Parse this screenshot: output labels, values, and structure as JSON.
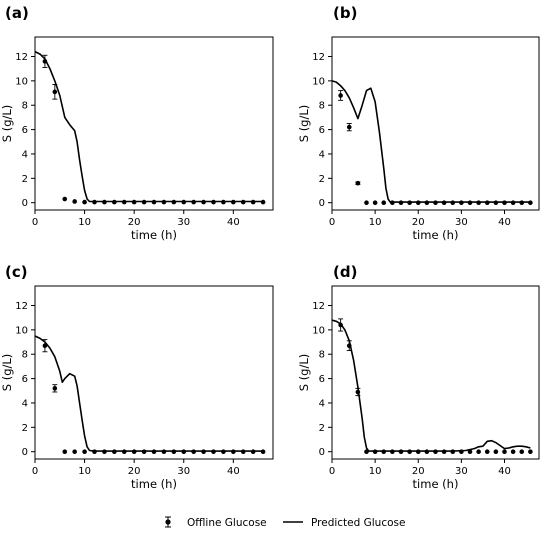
{
  "legend": {
    "offline_label": "Offline Glucose",
    "predicted_label": "Predicted Glucose"
  },
  "chart_data": [
    {
      "type": "line",
      "panel_label": "(a)",
      "xlabel": "time (h)",
      "ylabel": "S (g/L)",
      "xlim": [
        0,
        48
      ],
      "ylim": [
        -0.6,
        13.6
      ],
      "xticks": [
        0,
        10,
        20,
        30,
        40
      ],
      "yticks": [
        0,
        2,
        4,
        6,
        8,
        10,
        12
      ],
      "series": [
        {
          "kind": "scatter_errorbar",
          "x": [
            2,
            4,
            6,
            8,
            10,
            12,
            14,
            16,
            18,
            20,
            22,
            24,
            26,
            28,
            30,
            32,
            34,
            36,
            38,
            40,
            42,
            44,
            46
          ],
          "y": [
            11.6,
            9.1,
            0.3,
            0.1,
            0.05,
            0.05,
            0.05,
            0.05,
            0.05,
            0.05,
            0.05,
            0.05,
            0.05,
            0.05,
            0.05,
            0.05,
            0.05,
            0.05,
            0.05,
            0.05,
            0.05,
            0.05,
            0.05
          ],
          "err": [
            0.5,
            0.6,
            0,
            0,
            0,
            0,
            0,
            0,
            0,
            0,
            0,
            0,
            0,
            0,
            0,
            0,
            0,
            0,
            0,
            0,
            0,
            0,
            0
          ]
        },
        {
          "kind": "line",
          "x": [
            0,
            1,
            2,
            3,
            4,
            5,
            6,
            7,
            8,
            8.5,
            9,
            9.5,
            10,
            10.5,
            11,
            12,
            14,
            20,
            30,
            40,
            46
          ],
          "y": [
            12.4,
            12.2,
            11.8,
            11.0,
            10.0,
            8.8,
            7.0,
            6.4,
            5.9,
            5.0,
            3.5,
            2.2,
            1.0,
            0.3,
            0.1,
            0.1,
            0.1,
            0.1,
            0.1,
            0.1,
            0.1
          ]
        }
      ]
    },
    {
      "type": "line",
      "panel_label": "(b)",
      "xlabel": "time (h)",
      "ylabel": "S (g/L)",
      "xlim": [
        0,
        48
      ],
      "ylim": [
        -0.6,
        13.6
      ],
      "xticks": [
        0,
        10,
        20,
        30,
        40
      ],
      "yticks": [
        0,
        2,
        4,
        6,
        8,
        10,
        12
      ],
      "series": [
        {
          "kind": "scatter_errorbar",
          "x": [
            2,
            4,
            6,
            8,
            10,
            12,
            14,
            16,
            18,
            20,
            22,
            24,
            26,
            28,
            30,
            32,
            34,
            36,
            38,
            40,
            42,
            44,
            46
          ],
          "y": [
            8.8,
            6.2,
            1.6,
            0,
            0,
            0,
            0,
            0,
            0,
            0,
            0,
            0,
            0,
            0,
            0,
            0,
            0,
            0,
            0,
            0,
            0,
            0,
            0
          ],
          "err": [
            0.4,
            0.3,
            0.1,
            0,
            0,
            0,
            0,
            0,
            0,
            0,
            0,
            0,
            0,
            0,
            0,
            0,
            0,
            0,
            0,
            0,
            0,
            0,
            0
          ]
        },
        {
          "kind": "line",
          "x": [
            0,
            1,
            2,
            3,
            4,
            5,
            6,
            7,
            8,
            9,
            10,
            11,
            12,
            12.5,
            13,
            13.5,
            14,
            20,
            30,
            40,
            46
          ],
          "y": [
            10.0,
            9.9,
            9.6,
            9.2,
            8.6,
            7.8,
            6.9,
            8.0,
            9.2,
            9.4,
            8.3,
            5.8,
            2.8,
            1.2,
            0.3,
            0.05,
            0.05,
            0.05,
            0.05,
            0.05,
            0.05
          ]
        }
      ]
    },
    {
      "type": "line",
      "panel_label": "(c)",
      "xlabel": "time (h)",
      "ylabel": "S (g/L)",
      "xlim": [
        0,
        48
      ],
      "ylim": [
        -0.6,
        13.6
      ],
      "xticks": [
        0,
        10,
        20,
        30,
        40
      ],
      "yticks": [
        0,
        2,
        4,
        6,
        8,
        10,
        12
      ],
      "series": [
        {
          "kind": "scatter_errorbar",
          "x": [
            2,
            4,
            6,
            8,
            10,
            12,
            14,
            16,
            18,
            20,
            22,
            24,
            26,
            28,
            30,
            32,
            34,
            36,
            38,
            40,
            42,
            44,
            46
          ],
          "y": [
            8.7,
            5.2,
            0,
            0,
            0,
            0,
            0,
            0,
            0,
            0,
            0,
            0,
            0,
            0,
            0,
            0,
            0,
            0,
            0,
            0,
            0,
            0,
            0
          ],
          "err": [
            0.5,
            0.3,
            0,
            0,
            0,
            0,
            0,
            0,
            0,
            0,
            0,
            0,
            0,
            0,
            0,
            0,
            0,
            0,
            0,
            0,
            0,
            0,
            0
          ]
        },
        {
          "kind": "line",
          "x": [
            0,
            1,
            2,
            3,
            4,
            5,
            5.5,
            6,
            7,
            8,
            8.5,
            9,
            9.5,
            10,
            10.5,
            11,
            12,
            20,
            30,
            40,
            46
          ],
          "y": [
            9.5,
            9.3,
            9.0,
            8.5,
            7.8,
            6.6,
            5.7,
            6.0,
            6.4,
            6.2,
            5.4,
            4.0,
            2.6,
            1.3,
            0.4,
            0.1,
            0.05,
            0.05,
            0.05,
            0.05,
            0.05
          ]
        }
      ]
    },
    {
      "type": "line",
      "panel_label": "(d)",
      "xlabel": "time (h)",
      "ylabel": "S (g/L)",
      "xlim": [
        0,
        48
      ],
      "ylim": [
        -0.6,
        13.6
      ],
      "xticks": [
        0,
        10,
        20,
        30,
        40
      ],
      "yticks": [
        0,
        2,
        4,
        6,
        8,
        10,
        12
      ],
      "series": [
        {
          "kind": "scatter_errorbar",
          "x": [
            2,
            4,
            6,
            8,
            10,
            12,
            14,
            16,
            18,
            20,
            22,
            24,
            26,
            28,
            30,
            32,
            34,
            36,
            38,
            40,
            42,
            44,
            46
          ],
          "y": [
            10.4,
            8.7,
            4.9,
            0,
            0,
            0,
            0,
            0,
            0,
            0,
            0,
            0,
            0,
            0,
            0,
            0,
            0,
            0,
            0,
            0,
            0,
            0,
            0
          ],
          "err": [
            0.5,
            0.4,
            0.3,
            0,
            0,
            0,
            0,
            0,
            0,
            0,
            0,
            0,
            0,
            0,
            0,
            0,
            0,
            0,
            0,
            0,
            0,
            0,
            0
          ]
        },
        {
          "kind": "line",
          "x": [
            0,
            1,
            2,
            3,
            4,
            5,
            6,
            7,
            7.5,
            8,
            8.5,
            9,
            20,
            28,
            31,
            33,
            34,
            35,
            36,
            37,
            38,
            39,
            40,
            41,
            42,
            43,
            44,
            45,
            46
          ],
          "y": [
            10.8,
            10.7,
            10.5,
            10.0,
            9.1,
            7.5,
            5.3,
            2.7,
            1.2,
            0.3,
            0.05,
            0.05,
            0.05,
            0.05,
            0.1,
            0.25,
            0.4,
            0.45,
            0.85,
            0.9,
            0.75,
            0.5,
            0.25,
            0.3,
            0.4,
            0.45,
            0.45,
            0.4,
            0.3
          ]
        }
      ]
    }
  ]
}
